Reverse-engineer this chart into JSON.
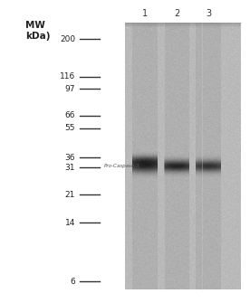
{
  "bg_color": "#ffffff",
  "mw_labels": [
    "200",
    "116",
    "97",
    "66",
    "55",
    "36",
    "31",
    "21",
    "14",
    "6"
  ],
  "mw_values": [
    200,
    116,
    97,
    66,
    55,
    36,
    31,
    21,
    14,
    6
  ],
  "lane_labels": [
    "1",
    "2",
    "3"
  ],
  "band_label": "Pro-Caspase-3",
  "band_mw": 32,
  "extra_band_mw": 35,
  "gel_bg": 185,
  "lane_bg": 175,
  "band_dark": 60,
  "extra_band_dark": 120,
  "header_line1": "MW",
  "header_line2": "kDa)"
}
